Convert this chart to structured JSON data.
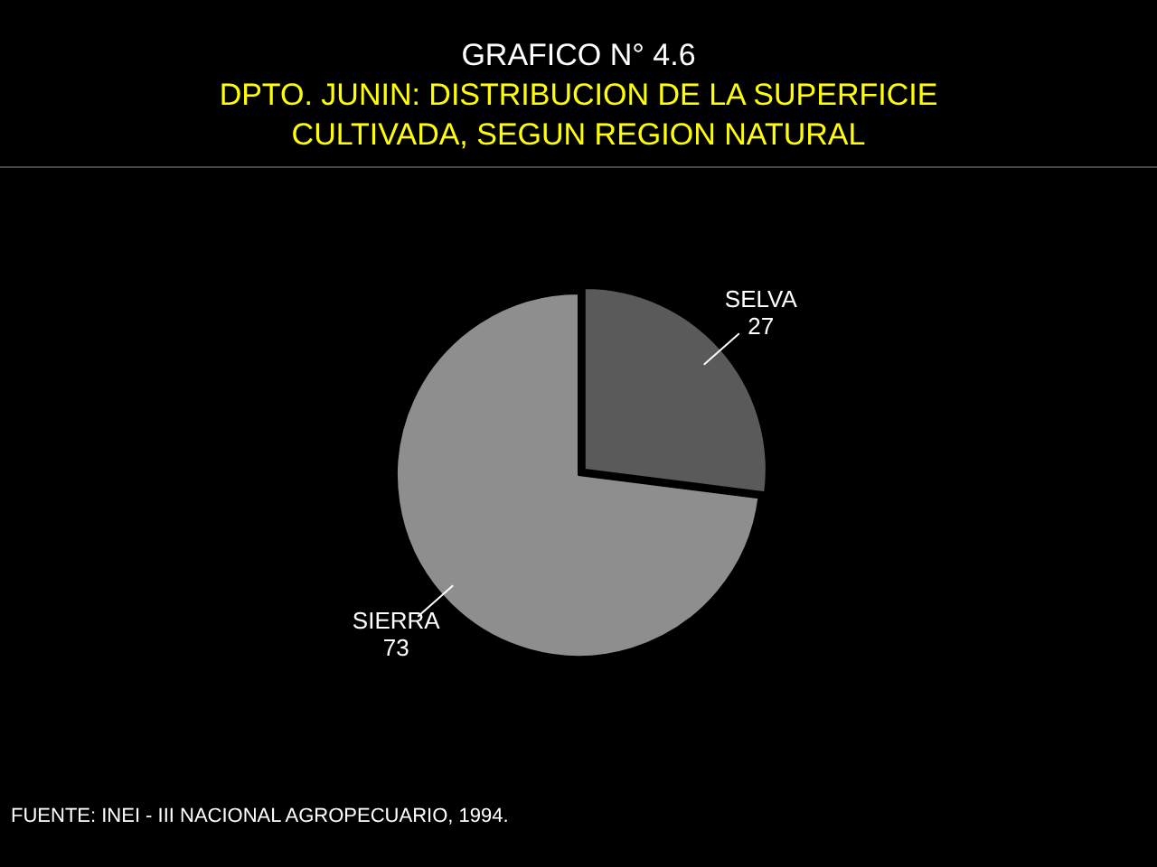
{
  "chart_data": {
    "type": "pie",
    "title": "GRAFICO N° 4.6",
    "subtitle": "DPTO. JUNIN: DISTRIBUCION DE LA SUPERFICIE CULTIVADA, SEGUN REGION NATURAL",
    "categories": [
      "SELVA",
      "SIERRA"
    ],
    "values": [
      27,
      73
    ],
    "colors": [
      "#5a5a5a",
      "#8e8e8e"
    ],
    "data_labels": true,
    "legend": false,
    "annotations": [
      "FUENTE: INEI - III NACIONAL AGROPECUARIO, 1994."
    ]
  }
}
